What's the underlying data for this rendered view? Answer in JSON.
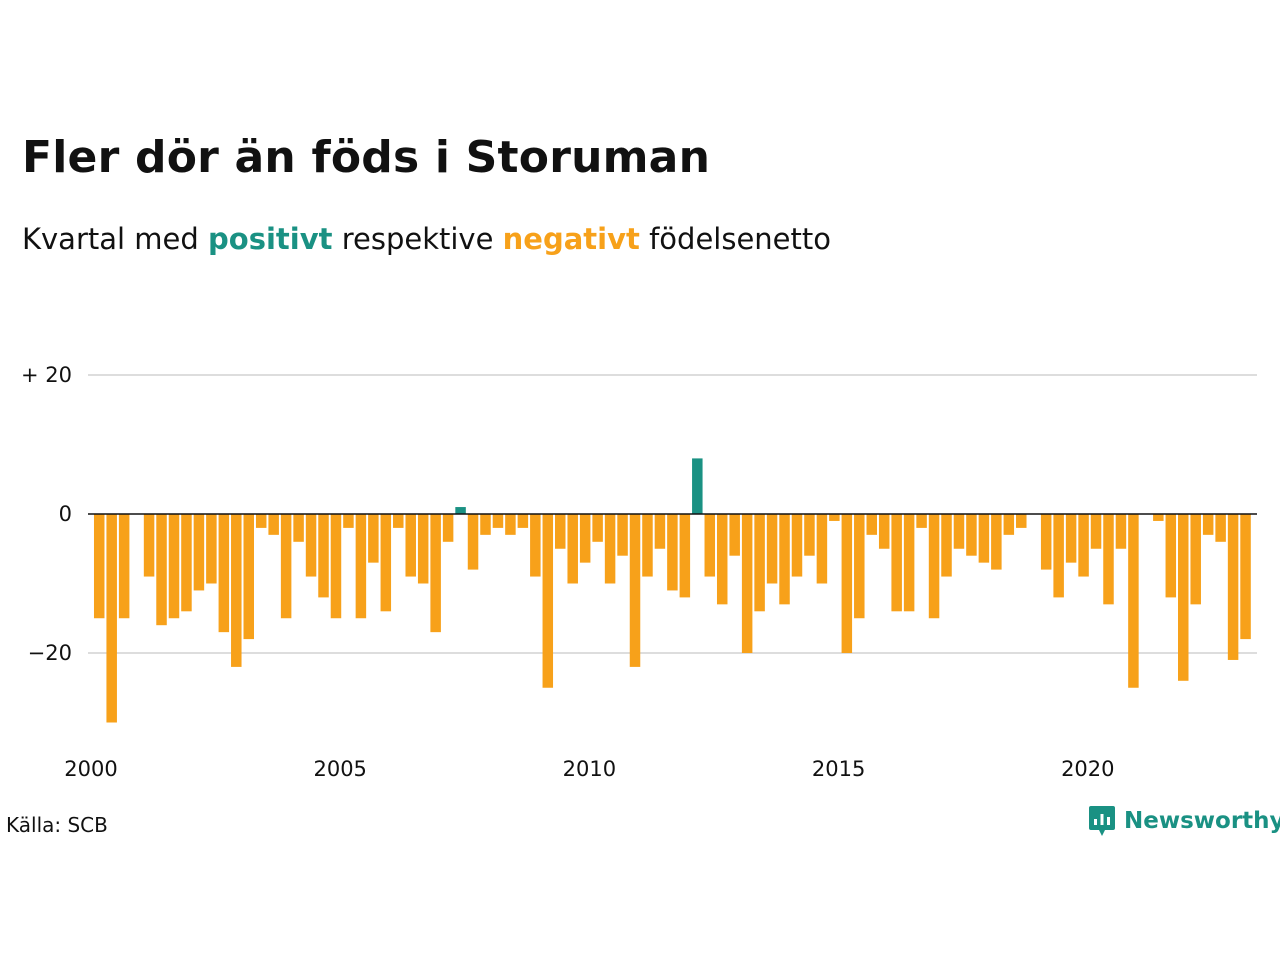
{
  "title": "Fler dör än föds i Storuman",
  "subtitle": {
    "before": "Kvartal med ",
    "positive": "positivt",
    "middle": " respektive ",
    "negative": "negativt",
    "after": " födelsenetto"
  },
  "source": "Källa: SCB",
  "brand": "Newsworthy",
  "colors": {
    "positive": "#1a9183",
    "negative": "#f7a11a",
    "grid": "#dddddd",
    "text": "#111111"
  },
  "chart_data": {
    "type": "bar",
    "x_start": "2000 Q1",
    "x_ticks": [
      {
        "label": "2000",
        "year": 2000
      },
      {
        "label": "2005",
        "year": 2005
      },
      {
        "label": "2010",
        "year": 2010
      },
      {
        "label": "2015",
        "year": 2015
      },
      {
        "label": "2020",
        "year": 2020
      }
    ],
    "y_ticks": [
      {
        "label": "+ 20",
        "value": 20
      },
      {
        "label": "0",
        "value": 0
      },
      {
        "label": "−20",
        "value": -20
      }
    ],
    "ylim": [
      -30,
      20
    ],
    "grid": true,
    "values": [
      -15,
      -30,
      -15,
      0,
      -9,
      -16,
      -15,
      -14,
      -11,
      -10,
      -17,
      -22,
      -18,
      -2,
      -3,
      -15,
      -4,
      -9,
      -12,
      -15,
      -2,
      -15,
      -7,
      -14,
      -2,
      -9,
      -10,
      -17,
      -4,
      1,
      -8,
      -3,
      -2,
      -3,
      -2,
      -9,
      -25,
      -5,
      -10,
      -7,
      -4,
      -10,
      -6,
      -22,
      -9,
      -5,
      -11,
      -12,
      8,
      -9,
      -13,
      -6,
      -20,
      -14,
      -10,
      -13,
      -9,
      -6,
      -10,
      -1,
      -20,
      -15,
      -3,
      -5,
      -14,
      -14,
      -2,
      -15,
      -9,
      -5,
      -6,
      -7,
      -8,
      -3,
      -2,
      0,
      -8,
      -12,
      -7,
      -9,
      -5,
      -13,
      -5,
      -25,
      0,
      -1,
      -12,
      -24,
      -13,
      -3,
      -4,
      -21,
      -18
    ]
  }
}
